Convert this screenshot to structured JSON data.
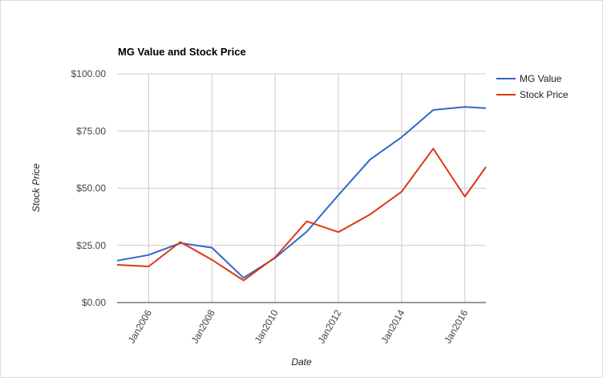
{
  "chart_data": {
    "type": "line",
    "title": "MG Value and Stock Price",
    "xlabel": "Date",
    "ylabel": "Stock Price",
    "x_ticks": [
      "Jan2006",
      "Jan2008",
      "Jan2010",
      "Jan2012",
      "Jan2014",
      "Jan2016"
    ],
    "y_ticks": [
      "$0.00",
      "$25.00",
      "$50.00",
      "$75.00",
      "$100.00"
    ],
    "xlim": [
      "2005-01",
      "2016-09"
    ],
    "ylim": [
      0,
      100
    ],
    "grid": true,
    "legend_position": "right",
    "x": [
      "2005-01",
      "2006-01",
      "2007-01",
      "2008-01",
      "2009-01",
      "2010-01",
      "2011-01",
      "2012-01",
      "2013-01",
      "2014-01",
      "2015-01",
      "2016-01",
      "2016-09"
    ],
    "series": [
      {
        "name": "MG Value",
        "color": "#3366cc",
        "values": [
          18.3,
          20.8,
          26.0,
          24.0,
          10.8,
          19.5,
          31.0,
          47.0,
          62.5,
          72.3,
          84.2,
          85.5,
          85.0
        ]
      },
      {
        "name": "Stock Price",
        "color": "#dc3912",
        "values": [
          16.5,
          15.8,
          26.5,
          18.7,
          9.7,
          19.8,
          35.5,
          30.8,
          38.5,
          48.5,
          67.3,
          46.3,
          59.3
        ]
      }
    ]
  }
}
